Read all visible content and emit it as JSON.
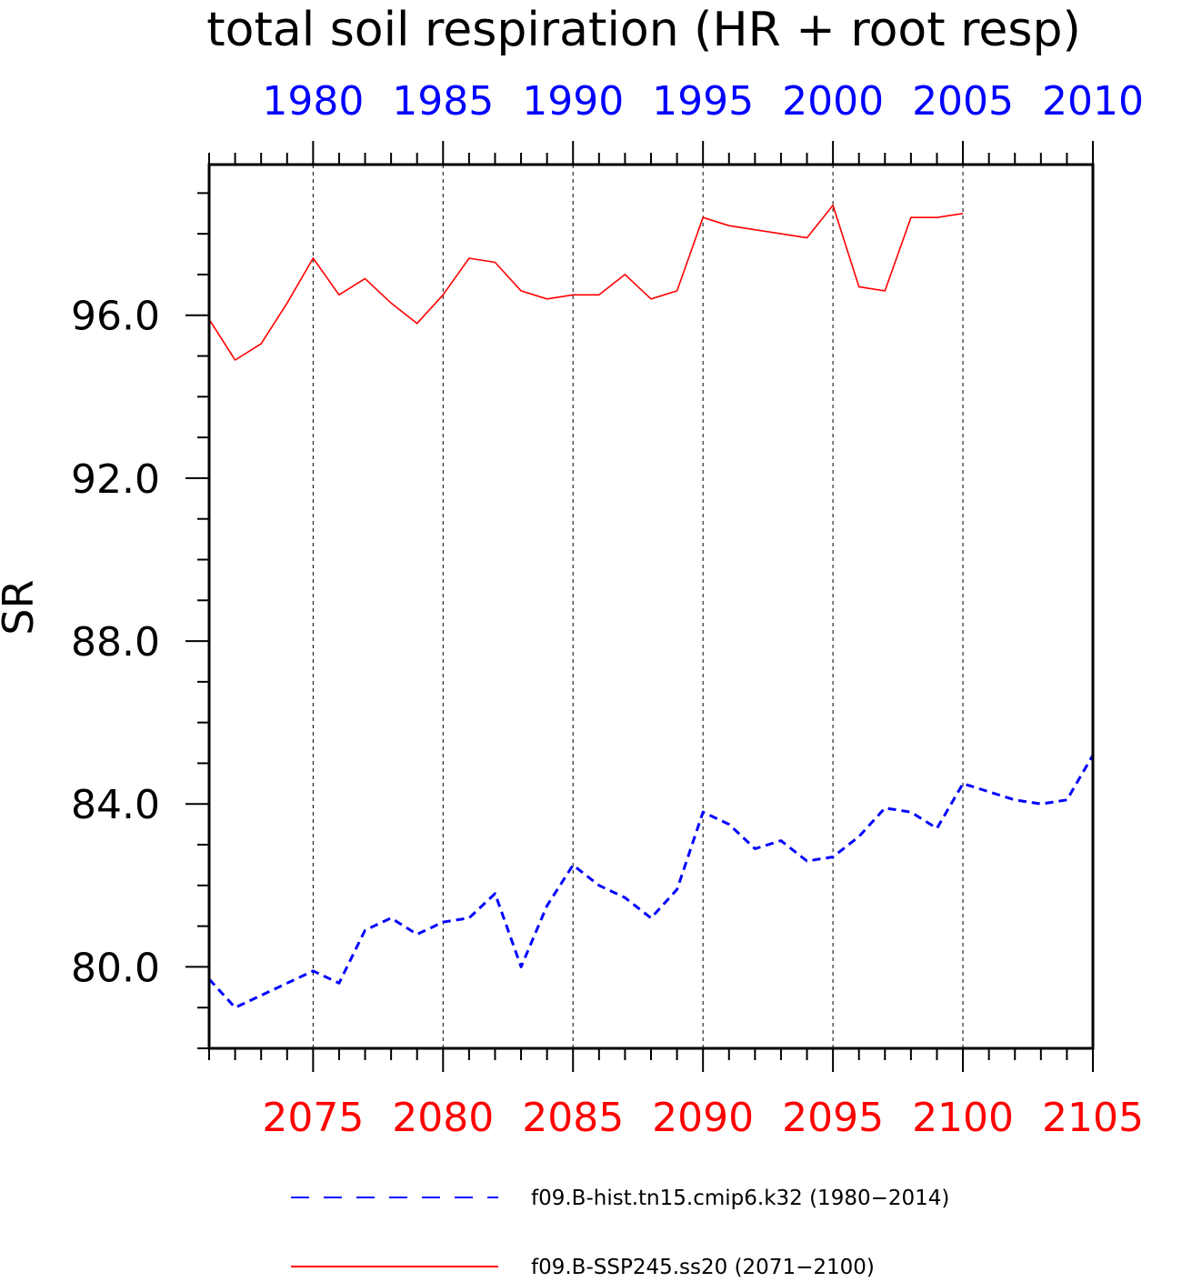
{
  "chart_data": {
    "type": "line",
    "title": "total soil respiration (HR + root resp)",
    "ylabel": "SR",
    "ylim": [
      78.0,
      99.7
    ],
    "yticks": [
      {
        "value": 80.0,
        "label": "80.0"
      },
      {
        "value": 84.0,
        "label": "84.0"
      },
      {
        "value": 88.0,
        "label": "88.0"
      },
      {
        "value": 92.0,
        "label": "92.0"
      },
      {
        "value": 96.0,
        "label": "96.0"
      }
    ],
    "yminor_step": 1.0,
    "x_top": {
      "range": [
        1976,
        2010
      ],
      "color": "#0000ff",
      "ticks": [
        {
          "value": 1980,
          "label": "1980"
        },
        {
          "value": 1985,
          "label": "1985"
        },
        {
          "value": 1990,
          "label": "1990"
        },
        {
          "value": 1995,
          "label": "1995"
        },
        {
          "value": 2000,
          "label": "2000"
        },
        {
          "value": 2005,
          "label": "2005"
        },
        {
          "value": 2010,
          "label": "2010"
        }
      ]
    },
    "x_bottom": {
      "range": [
        2071,
        2105
      ],
      "color": "#ff0000",
      "ticks": [
        {
          "value": 2075,
          "label": "2075"
        },
        {
          "value": 2080,
          "label": "2080"
        },
        {
          "value": 2085,
          "label": "2085"
        },
        {
          "value": 2090,
          "label": "2090"
        },
        {
          "value": 2095,
          "label": "2095"
        },
        {
          "value": 2100,
          "label": "2100"
        },
        {
          "value": 2105,
          "label": "2105"
        }
      ]
    },
    "grid": {
      "x_dashed_at_major_ticks": true
    },
    "series": [
      {
        "name": "f09.B-hist.tn15.cmip6.k32 (1980−2014)",
        "axis": "top",
        "color": "#0000ff",
        "dash": "dashed",
        "x": [
          1976,
          1977,
          1978,
          1979,
          1980,
          1981,
          1982,
          1983,
          1984,
          1985,
          1986,
          1987,
          1988,
          1989,
          1990,
          1991,
          1992,
          1993,
          1994,
          1995,
          1996,
          1997,
          1998,
          1999,
          2000,
          2001,
          2002,
          2003,
          2004,
          2005,
          2006,
          2007,
          2008,
          2009,
          2010
        ],
        "y": [
          79.7,
          79.0,
          79.3,
          79.6,
          79.9,
          79.6,
          80.9,
          81.2,
          80.8,
          81.1,
          81.2,
          81.8,
          80.0,
          81.5,
          82.5,
          82.0,
          81.7,
          81.2,
          81.9,
          83.8,
          83.5,
          82.9,
          83.1,
          82.6,
          82.7,
          83.2,
          83.9,
          83.8,
          83.4,
          84.5,
          84.3,
          84.1,
          84.0,
          84.1,
          85.2
        ]
      },
      {
        "name": "f09.B-SSP245.ss20 (2071−2100)",
        "axis": "bottom",
        "color": "#ff0000",
        "dash": "solid",
        "x": [
          2071,
          2072,
          2073,
          2074,
          2075,
          2076,
          2077,
          2078,
          2079,
          2080,
          2081,
          2082,
          2083,
          2084,
          2085,
          2086,
          2087,
          2088,
          2089,
          2090,
          2091,
          2092,
          2093,
          2094,
          2095,
          2096,
          2097,
          2098,
          2099,
          2100
        ],
        "y": [
          95.9,
          94.9,
          95.3,
          96.3,
          97.4,
          96.5,
          96.9,
          96.3,
          95.8,
          96.5,
          97.4,
          97.3,
          96.6,
          96.4,
          96.5,
          96.5,
          97.0,
          96.4,
          96.6,
          98.4,
          98.2,
          98.1,
          98.0,
          97.9,
          98.7,
          96.7,
          96.6,
          98.4,
          98.4,
          98.5
        ]
      }
    ],
    "legend": {
      "placement": "bottom"
    }
  }
}
